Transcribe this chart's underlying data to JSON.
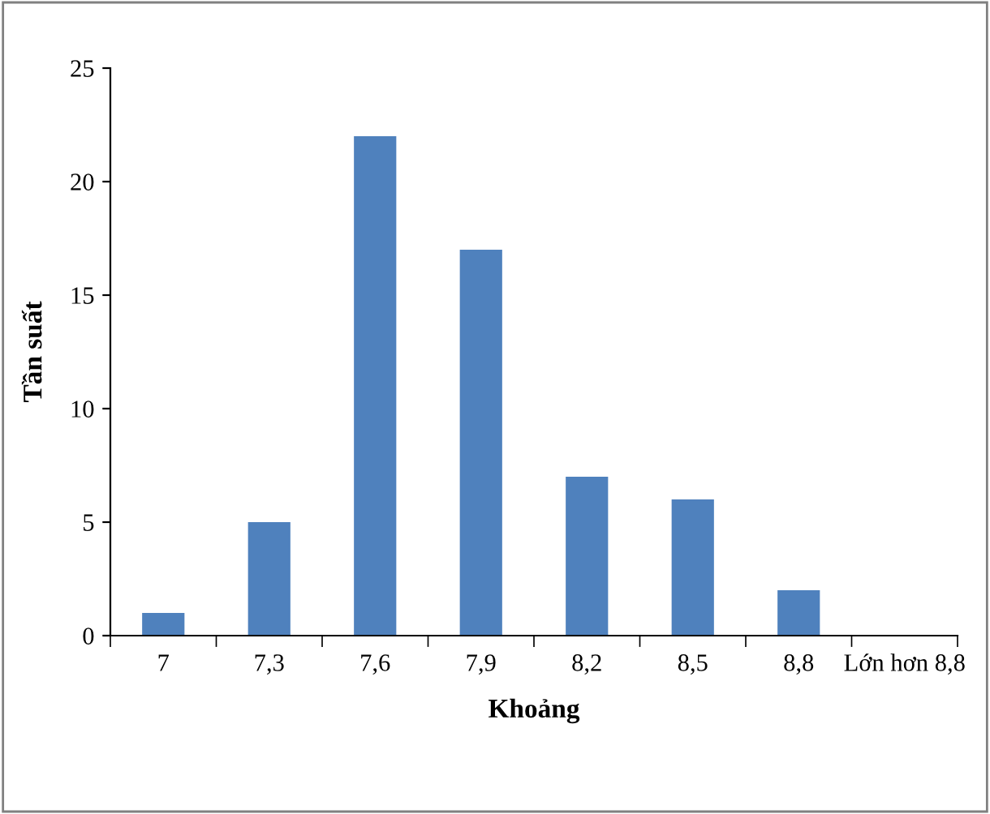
{
  "chart_data": {
    "type": "bar",
    "xlabel": "Khoảng",
    "ylabel": "Tần suất",
    "categories": [
      "7",
      "7,3",
      "7,6",
      "7,9",
      "8,2",
      "8,5",
      "8,8",
      "Lớn hơn 8,8"
    ],
    "values": [
      1,
      5,
      22,
      17,
      7,
      6,
      2,
      0
    ],
    "color": "#4f81bd",
    "ylim": [
      0,
      25
    ],
    "yticks": [
      0,
      5,
      10,
      15,
      20,
      25
    ],
    "grid": false,
    "legend": false
  }
}
